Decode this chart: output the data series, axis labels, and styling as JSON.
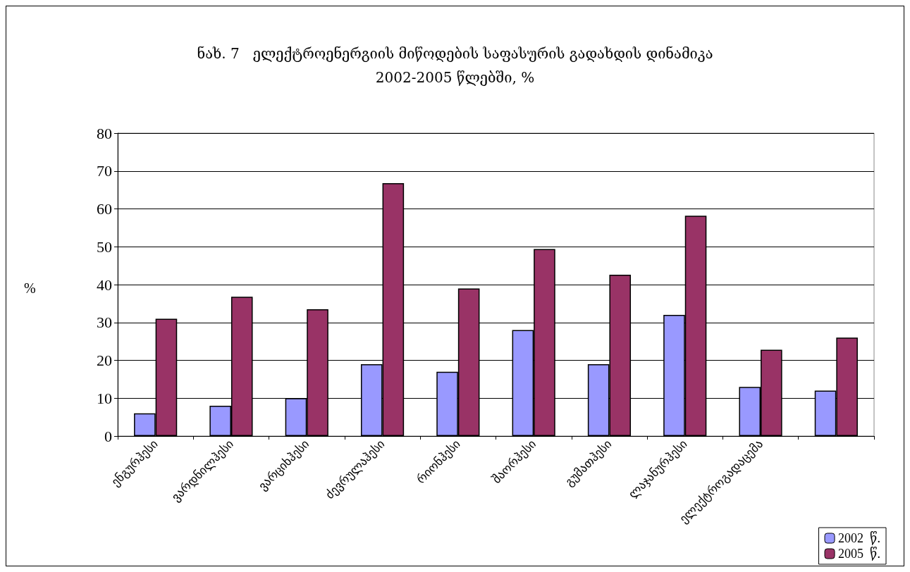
{
  "chart_data": {
    "type": "bar",
    "title": "ნახ. 7   ელექტროენერგიის მიწოდების საფასურის გადახდის დინამიკა\n2002-2005 წლებში, %",
    "ylabel": "%",
    "categories": [
      "ენგურჰესი",
      "ვარდნილჰესი",
      "ვარციხჰესი",
      "ძევრულაჰესი",
      "რიონჰესი",
      "შაორჰესი",
      "გუმათჰესი",
      "ლაჯანურჰესი",
      "ელექტროგადაცემა",
      null
    ],
    "series": [
      {
        "name": "2002  წ.",
        "color": "#9999ff",
        "values": [
          6,
          8,
          10,
          19,
          17,
          28,
          19,
          32,
          13,
          12
        ]
      },
      {
        "name": "2005  წ.",
        "color": "#993366",
        "values": [
          31,
          36.8,
          33.5,
          66.8,
          39,
          49.4,
          42.6,
          58.2,
          22.8,
          26
        ]
      }
    ],
    "ylim": [
      0,
      80
    ],
    "yticks": [
      0,
      10,
      20,
      30,
      40,
      50,
      60,
      70,
      80
    ],
    "grid": "y",
    "legend": "bottom right"
  }
}
